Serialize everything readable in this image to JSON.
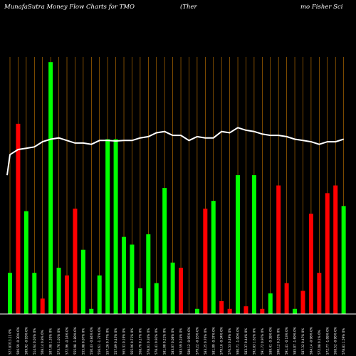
{
  "header": {
    "title_left": "MunafaSutra  Money Flow  Charts for TMO",
    "title_mid": "(Ther",
    "title_right": "mo  Fisher Sci"
  },
  "chart_data": {
    "type": "bar",
    "colors": {
      "background": "#000000",
      "up": "#00ff00",
      "down": "#ff0000",
      "grid": "#cc7a00",
      "line": "#ffffff",
      "baseline": "#ffffff"
    },
    "ylim": [
      0,
      100
    ],
    "categories": [
      "527.87/13.21 0%",
      "506.59 -0.30% 0%",
      "509.92 -0.93% 0%",
      "514.64 0.03% 0%",
      "508.14 0.8% 0%",
      "507.08 1.35% 0%",
      "573.76 1.01% 0%",
      "572.96 -0.14% 0%",
      "555.08 -1.89% 0%",
      "555.08 0.07% 0%",
      "550.43 -0.84% 0%",
      "556.61 -1.77% 0%",
      "557.26 0.77% 0%",
      "557.89 0.43% 0%",
      "565.31 0.19% 0%",
      "565.96 0.71% 0%",
      "568.76 0.17% 0%",
      "578.01 0.34% 0%",
      "578.41 0.92% 0%",
      "581.00 0.21% 0%",
      "583.07 0.08% 0%",
      "583.59 0.24% 0%",
      "580.12 -0.95% 0%",
      "579.22 -0.16% 0%",
      "583.25 0.70% 0%",
      "581.09 -0.37% 0%",
      "579.16 -0.34% 0%",
      "576.53 0.49% 0%",
      "590.71 -1.00% 0%",
      "583.37 0.44% 0%",
      "592.83 1.62% 0%",
      "591.72 0.97% 0%",
      "589.41 -0.38% 0%",
      "590.12 0.33% 0%",
      "591.41 -0.13% 0%",
      "585.07 -1.69% 0%",
      "587.32 0.47% 0%",
      "584.14 -0.98% 0%",
      "572.08 0.1% 0%",
      "572.77 -1.08% 0%",
      "568.52 -0.96% 0%",
      "578.81 1.59% 0%"
    ],
    "values": [
      16,
      74,
      40,
      16,
      6,
      98,
      18,
      15,
      41,
      25,
      2,
      15,
      68,
      68,
      30,
      27,
      10,
      31,
      12,
      49,
      20,
      18,
      0,
      2,
      41,
      44,
      5,
      2,
      54,
      3,
      54,
      2,
      8,
      50,
      12,
      2,
      9,
      39,
      16,
      47,
      50,
      42
    ],
    "flow": [
      "up",
      "down",
      "up",
      "up",
      "down",
      "up",
      "up",
      "down",
      "down",
      "up",
      "up",
      "up",
      "up",
      "up",
      "up",
      "up",
      "up",
      "up",
      "up",
      "up",
      "up",
      "down",
      "up",
      "up",
      "down",
      "up",
      "down",
      "down",
      "up",
      "down",
      "up",
      "down",
      "up",
      "down",
      "down",
      "up",
      "down",
      "down",
      "down",
      "down",
      "down",
      "up"
    ],
    "line_values": [
      62,
      64,
      64.5,
      65,
      67,
      68,
      68.5,
      67.5,
      66.5,
      66.5,
      66,
      67.5,
      67.5,
      67.3,
      67.5,
      67.5,
      68.5,
      69,
      70.5,
      71,
      69.5,
      69.5,
      67.5,
      69,
      68.5,
      68.5,
      71,
      70.5,
      72.5,
      71.5,
      71,
      70,
      69.5,
      69.5,
      69,
      68,
      67.5,
      67,
      66,
      67,
      67,
      68
    ]
  }
}
